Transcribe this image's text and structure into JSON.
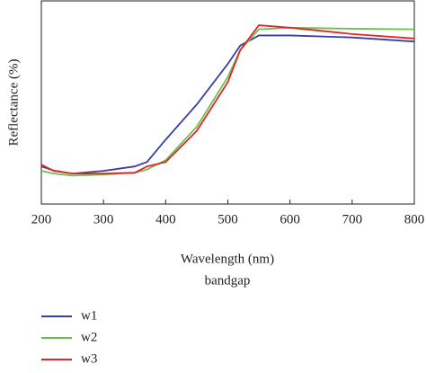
{
  "chart_data": {
    "type": "line",
    "xlabel": "Wavelength (nm)",
    "subtitle": "bandgap",
    "ylabel": "Reflectance (%)",
    "x": [
      200,
      220,
      250,
      300,
      350,
      370,
      400,
      450,
      500,
      520,
      550,
      600,
      700,
      800
    ],
    "series": [
      {
        "name": "w1",
        "color": "#3a3fa0",
        "values": [
          18.5,
          16.5,
          15,
          16.3,
          18.5,
          20.7,
          31.7,
          49,
          69,
          78,
          83,
          83,
          82,
          80
        ]
      },
      {
        "name": "w2",
        "color": "#6cc04a",
        "values": [
          16.3,
          15,
          14,
          14.5,
          15.4,
          17,
          21.6,
          38,
          62.5,
          75.8,
          86,
          86.8,
          86.3,
          86
        ]
      },
      {
        "name": "w3",
        "color": "#e0262b",
        "values": [
          19.4,
          16.3,
          15,
          15,
          15.4,
          18.5,
          20.7,
          36,
          60,
          75.8,
          88,
          86.8,
          83.7,
          81.5
        ]
      }
    ],
    "xlim": [
      200,
      800
    ],
    "xticks": [
      200,
      300,
      400,
      500,
      600,
      700,
      800
    ],
    "ylim": [
      0,
      100
    ]
  }
}
